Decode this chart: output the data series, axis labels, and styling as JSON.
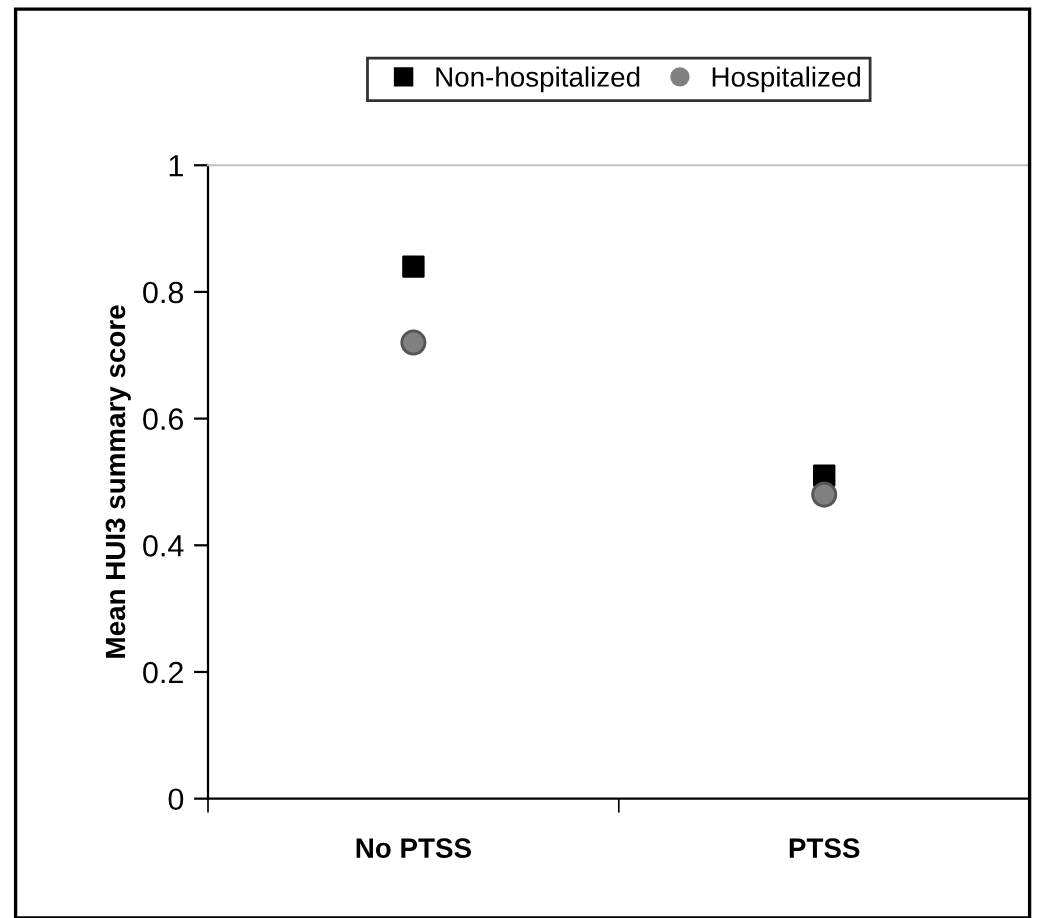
{
  "chart_data": {
    "type": "scatter",
    "ylabel": "Mean HUI3 summary score",
    "categories": [
      "No PTSS",
      "PTSS"
    ],
    "series": [
      {
        "name": "Non-hospitalized",
        "color": "#000000",
        "marker": "square",
        "values": [
          0.84,
          0.51
        ]
      },
      {
        "name": "Hospitalized",
        "color": "#808080",
        "marker": "circle",
        "values": [
          0.72,
          0.48
        ]
      }
    ],
    "ylim": [
      0,
      1
    ],
    "yticks": [
      0,
      0.2,
      0.4,
      0.6,
      0.8,
      1
    ],
    "grid": false,
    "legend": "top"
  }
}
